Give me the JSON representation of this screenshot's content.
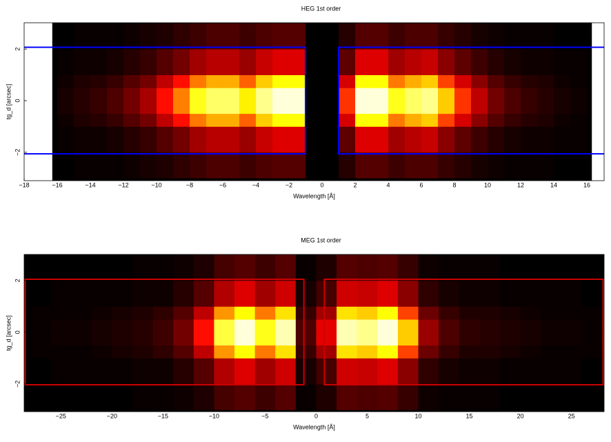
{
  "chart_data": [
    {
      "type": "heatmap",
      "title": "HEG 1st order",
      "xlabel": "Wavelength [Å]",
      "ylabel": "tg_d [arcsec]",
      "xlim": [
        -18,
        17.04
      ],
      "ylim": [
        -3.1,
        3.02
      ],
      "xticks": [
        {
          "value": -18,
          "label": "−18"
        },
        {
          "value": -16,
          "label": "−16"
        },
        {
          "value": -14,
          "label": "−14"
        },
        {
          "value": -12,
          "label": "−12"
        },
        {
          "value": -10,
          "label": "−10"
        },
        {
          "value": -8,
          "label": "−8"
        },
        {
          "value": -6,
          "label": "−6"
        },
        {
          "value": -4,
          "label": "−4"
        },
        {
          "value": -2,
          "label": "−2"
        },
        0,
        2,
        4,
        6,
        8,
        10,
        12,
        14,
        16
      ],
      "yticks": [
        {
          "value": -2,
          "label": "−2"
        },
        0,
        2
      ],
      "exposure_xlim": [
        -16.3,
        16.3
      ],
      "x_bins": [
        -16,
        -15,
        -14,
        -13,
        -12,
        -11,
        -10,
        -9,
        -8,
        -7,
        -6,
        -5,
        -4,
        -3,
        -2,
        -1,
        0,
        1,
        2,
        3,
        4,
        5,
        6,
        7,
        8,
        9,
        10,
        11,
        12,
        13,
        14,
        15,
        16
      ],
      "y_bins": [
        -3,
        -2,
        -1,
        -0.5,
        0,
        0.5,
        1,
        2,
        3
      ],
      "z": [
        [
          0,
          0.01,
          0.01,
          0.01,
          0.02,
          0.03,
          0.04,
          0.06,
          0.08,
          0.1,
          0.1,
          0.08,
          0.1,
          0.11,
          0.11,
          0,
          0,
          0.05,
          0.11,
          0.11,
          0.08,
          0.1,
          0.1,
          0.07,
          0.05,
          0.03,
          0.02,
          0.01,
          0.01,
          0.01,
          0,
          0
        ],
        [
          0.01,
          0.02,
          0.02,
          0.03,
          0.05,
          0.07,
          0.11,
          0.15,
          0.21,
          0.24,
          0.24,
          0.2,
          0.26,
          0.29,
          0.29,
          0,
          0,
          0.12,
          0.29,
          0.29,
          0.21,
          0.24,
          0.26,
          0.18,
          0.12,
          0.08,
          0.05,
          0.03,
          0.02,
          0.02,
          0.01,
          0.01
        ],
        [
          0.02,
          0.04,
          0.05,
          0.07,
          0.11,
          0.15,
          0.25,
          0.35,
          0.49,
          0.56,
          0.56,
          0.46,
          0.6,
          0.67,
          0.67,
          0,
          0,
          0.28,
          0.67,
          0.67,
          0.49,
          0.56,
          0.6,
          0.42,
          0.28,
          0.18,
          0.11,
          0.07,
          0.05,
          0.04,
          0.02,
          0.01
        ],
        [
          0.03,
          0.05,
          0.07,
          0.1,
          0.15,
          0.22,
          0.35,
          0.5,
          0.7,
          0.8,
          0.8,
          0.65,
          0.85,
          0.95,
          0.95,
          0,
          0,
          0.4,
          0.95,
          0.95,
          0.7,
          0.8,
          0.85,
          0.6,
          0.4,
          0.25,
          0.15,
          0.1,
          0.07,
          0.05,
          0.03,
          0.02
        ],
        [
          0.03,
          0.05,
          0.07,
          0.1,
          0.15,
          0.22,
          0.35,
          0.5,
          0.7,
          0.8,
          0.8,
          0.65,
          0.85,
          0.95,
          0.95,
          0,
          0,
          0.4,
          0.95,
          0.95,
          0.7,
          0.8,
          0.85,
          0.6,
          0.4,
          0.25,
          0.15,
          0.1,
          0.07,
          0.05,
          0.03,
          0.02
        ],
        [
          0.02,
          0.04,
          0.05,
          0.07,
          0.11,
          0.15,
          0.25,
          0.35,
          0.49,
          0.56,
          0.56,
          0.46,
          0.6,
          0.67,
          0.67,
          0,
          0,
          0.28,
          0.67,
          0.67,
          0.49,
          0.56,
          0.6,
          0.42,
          0.28,
          0.18,
          0.11,
          0.07,
          0.05,
          0.04,
          0.02,
          0.01
        ],
        [
          0.01,
          0.02,
          0.02,
          0.03,
          0.05,
          0.07,
          0.11,
          0.15,
          0.21,
          0.24,
          0.24,
          0.2,
          0.26,
          0.29,
          0.29,
          0,
          0,
          0.12,
          0.29,
          0.29,
          0.21,
          0.24,
          0.26,
          0.18,
          0.12,
          0.08,
          0.05,
          0.03,
          0.02,
          0.02,
          0.01,
          0.01
        ],
        [
          0,
          0.01,
          0.01,
          0.01,
          0.02,
          0.03,
          0.04,
          0.06,
          0.08,
          0.1,
          0.1,
          0.08,
          0.1,
          0.11,
          0.11,
          0,
          0,
          0.05,
          0.11,
          0.11,
          0.08,
          0.1,
          0.1,
          0.07,
          0.05,
          0.03,
          0.02,
          0.01,
          0.01,
          0.01,
          0,
          0
        ]
      ],
      "regions": [
        {
          "x": [
            -18.5,
            -1
          ],
          "y": [
            -2.06,
            2.07
          ]
        },
        {
          "x": [
            1,
            17.5
          ],
          "y": [
            -2.06,
            2.07
          ]
        }
      ],
      "region_color": "#0000ff"
    },
    {
      "type": "heatmap",
      "title": "MEG 1st order",
      "xlabel": "Wavelength [Å]",
      "ylabel": "tg_d [arcsec]",
      "xlim": [
        -28.6,
        28.2
      ],
      "ylim": [
        -3.07,
        3.01
      ],
      "xticks": [
        {
          "value": -25,
          "label": "−25"
        },
        {
          "value": -20,
          "label": "−20"
        },
        {
          "value": -15,
          "label": "−15"
        },
        {
          "value": -10,
          "label": "−10"
        },
        {
          "value": -5,
          "label": "−5"
        },
        0,
        5,
        10,
        15,
        20,
        25
      ],
      "yticks": [
        {
          "value": -2,
          "label": "−2"
        },
        0,
        2
      ],
      "x_bins": [
        -28,
        -26,
        -24,
        -22,
        -20,
        -18,
        -16,
        -14,
        -12,
        -10,
        -8,
        -6,
        -4,
        -2,
        0,
        2,
        4,
        6,
        8,
        10,
        12,
        14,
        16,
        18,
        20,
        22,
        24,
        26,
        28
      ],
      "y_bins": [
        -3,
        -2,
        -1,
        -0.5,
        0,
        0.5,
        1,
        2,
        3
      ],
      "z": [
        [
          0,
          0,
          0,
          0,
          0,
          0.01,
          0.01,
          0.02,
          0.04,
          0.09,
          0.11,
          0.08,
          0.11,
          0.01,
          0.04,
          0.11,
          0.1,
          0.11,
          0.07,
          0.02,
          0.01,
          0.01,
          0.01,
          0,
          0,
          0,
          0,
          0
        ],
        [
          0,
          0.01,
          0.01,
          0.01,
          0.01,
          0.02,
          0.02,
          0.05,
          0.11,
          0.23,
          0.29,
          0.21,
          0.27,
          0.03,
          0.09,
          0.27,
          0.26,
          0.29,
          0.18,
          0.06,
          0.03,
          0.02,
          0.02,
          0.01,
          0.01,
          0.01,
          0.01,
          0
        ],
        [
          0.01,
          0.01,
          0.01,
          0.02,
          0.03,
          0.04,
          0.06,
          0.11,
          0.25,
          0.53,
          0.67,
          0.49,
          0.63,
          0.07,
          0.21,
          0.63,
          0.6,
          0.67,
          0.42,
          0.14,
          0.07,
          0.04,
          0.04,
          0.03,
          0.02,
          0.01,
          0.01,
          0.01
        ],
        [
          0.01,
          0.02,
          0.02,
          0.03,
          0.04,
          0.05,
          0.08,
          0.15,
          0.35,
          0.75,
          0.95,
          0.7,
          0.9,
          0.1,
          0.3,
          0.9,
          0.85,
          0.95,
          0.6,
          0.2,
          0.1,
          0.06,
          0.05,
          0.04,
          0.03,
          0.02,
          0.02,
          0.01
        ],
        [
          0.01,
          0.02,
          0.02,
          0.03,
          0.04,
          0.05,
          0.08,
          0.15,
          0.35,
          0.75,
          0.95,
          0.7,
          0.9,
          0.1,
          0.3,
          0.9,
          0.85,
          0.95,
          0.6,
          0.2,
          0.1,
          0.06,
          0.05,
          0.04,
          0.03,
          0.02,
          0.02,
          0.01
        ],
        [
          0.01,
          0.01,
          0.01,
          0.02,
          0.03,
          0.04,
          0.06,
          0.11,
          0.25,
          0.53,
          0.67,
          0.49,
          0.63,
          0.07,
          0.21,
          0.63,
          0.6,
          0.67,
          0.42,
          0.14,
          0.07,
          0.04,
          0.04,
          0.03,
          0.02,
          0.01,
          0.01,
          0.01
        ],
        [
          0,
          0.01,
          0.01,
          0.01,
          0.01,
          0.02,
          0.02,
          0.05,
          0.11,
          0.23,
          0.29,
          0.21,
          0.27,
          0.03,
          0.09,
          0.27,
          0.26,
          0.29,
          0.18,
          0.06,
          0.03,
          0.02,
          0.02,
          0.01,
          0.01,
          0.01,
          0.01,
          0
        ],
        [
          0,
          0,
          0,
          0,
          0,
          0.01,
          0.01,
          0.02,
          0.04,
          0.09,
          0.11,
          0.08,
          0.11,
          0.01,
          0.04,
          0.11,
          0.1,
          0.11,
          0.07,
          0.02,
          0.01,
          0.01,
          0.01,
          0,
          0,
          0,
          0,
          0
        ]
      ],
      "regions": [
        {
          "x": [
            -28.5,
            -1.2
          ],
          "y": [
            -2.03,
            2.05
          ]
        },
        {
          "x": [
            0.8,
            28.1
          ],
          "y": [
            -2.03,
            2.05
          ]
        }
      ],
      "region_color": "#cc0000"
    }
  ]
}
